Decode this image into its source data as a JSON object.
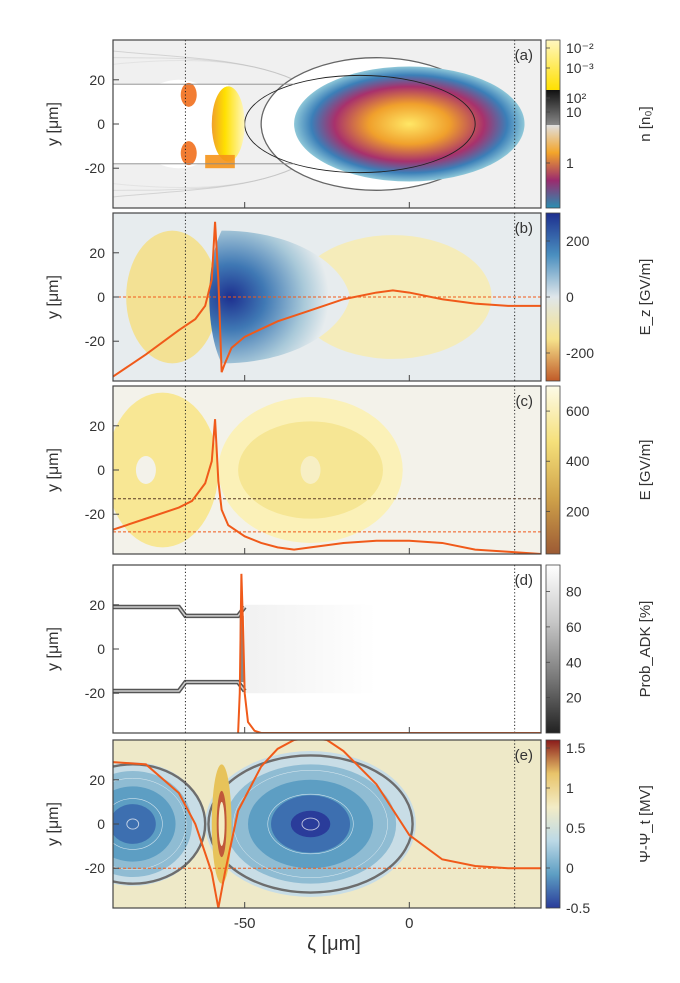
{
  "figure": {
    "xlabel": "ζ [μm]",
    "x_ticks": [
      "-50",
      "0"
    ]
  },
  "chart_data": [
    {
      "panel": "(a)",
      "type": "heatmap",
      "ylabel": "y [μm]",
      "xlim": [
        -90,
        40
      ],
      "ylim": [
        -38,
        38
      ],
      "y_ticks": [
        -20,
        0,
        20
      ],
      "colorbar": {
        "label": "n [n₀]",
        "ticks": [
          "10⁻²",
          "10⁻³",
          "10²",
          "10",
          "1"
        ],
        "colors": [
          "#fff7c0",
          "#ffe000",
          "#111111",
          "#888888",
          "#e0e0e0",
          "#f3a52a",
          "#9b2b6e",
          "#2a8fb2"
        ]
      },
      "contours": "outer bubble boundary + inner boundary ellipses; driver bunch centred at ζ≈0, |y|≲17 μm",
      "vlines_dotted": [
        -68,
        32
      ]
    },
    {
      "panel": "(b)",
      "type": "heatmap",
      "ylabel": "y [μm]",
      "xlim": [
        -90,
        40
      ],
      "ylim": [
        -38,
        38
      ],
      "y_ticks": [
        -20,
        0,
        20
      ],
      "colorbar": {
        "label": "E_z [GV/m]",
        "range": [
          -300,
          300
        ],
        "ticks": [
          "200",
          "0",
          "-200"
        ],
        "colors": [
          "#1d2f8f",
          "#4a8fbf",
          "#dfe6ea",
          "#f6e38c",
          "#c05a28"
        ]
      },
      "lineout": {
        "name": "on-axis E_z",
        "x": [
          -90,
          -80,
          -70,
          -65,
          -62,
          -60,
          -59,
          -58,
          -57,
          -56,
          -54,
          -50,
          -40,
          -30,
          -20,
          -10,
          -5,
          0,
          10,
          20,
          30,
          40
        ],
        "y": [
          -36,
          -26,
          -15,
          -10,
          -4,
          8,
          34,
          8,
          -34,
          -30,
          -23,
          -18,
          -11,
          -6,
          -1,
          2,
          3,
          2,
          -1,
          -3,
          -4,
          -4
        ]
      },
      "hline_dashed": 0,
      "vlines_dotted": [
        -68,
        32
      ]
    },
    {
      "panel": "(c)",
      "type": "heatmap",
      "ylabel": "y [μm]",
      "xlim": [
        -90,
        40
      ],
      "ylim": [
        -38,
        38
      ],
      "y_ticks": [
        -20,
        0,
        20
      ],
      "colorbar": {
        "label": "E [GV/m]",
        "range": [
          30,
          700
        ],
        "ticks": [
          "600",
          "400",
          "200"
        ],
        "colors": [
          "#fdfbe8",
          "#f5e07a",
          "#cfa24a",
          "#9c5a34"
        ]
      },
      "lineout": {
        "name": "on-axis E",
        "x": [
          -90,
          -80,
          -70,
          -66,
          -62,
          -60,
          -59,
          -58,
          -57,
          -55,
          -50,
          -45,
          -40,
          -35,
          -30,
          -20,
          -10,
          0,
          10,
          20,
          30,
          40
        ],
        "y": [
          -27,
          -22,
          -17,
          -14,
          -6,
          4,
          23,
          -5,
          -18,
          -25,
          -30,
          -33,
          -35,
          -36,
          -35,
          -33,
          -32,
          -32,
          -33,
          -36,
          -37,
          -38
        ]
      },
      "hlines_dashed": [
        -13,
        -28
      ],
      "vlines_dotted": [
        -68,
        32
      ]
    },
    {
      "panel": "(d)",
      "type": "heatmap",
      "ylabel": "y [μm]",
      "xlim": [
        -90,
        40
      ],
      "ylim": [
        -38,
        38
      ],
      "y_ticks": [
        -20,
        0,
        20
      ],
      "colorbar": {
        "label": "Prob_ADK [%]",
        "range": [
          0,
          95
        ],
        "ticks": [
          "80",
          "60",
          "40",
          "20"
        ],
        "colors": [
          "#ffffff",
          "#c8c8c8",
          "#7a7a7a",
          "#222222"
        ]
      },
      "lineout": {
        "name": "ionization probability",
        "x": [
          -52,
          -51.5,
          -51,
          -50.5,
          -50,
          -49,
          -47,
          -45,
          -40,
          40
        ],
        "y": [
          -38,
          -20,
          34,
          10,
          -20,
          -33,
          -37,
          -38,
          -38,
          -38
        ]
      },
      "vlines_dotted": [
        -68,
        32
      ]
    },
    {
      "panel": "(e)",
      "type": "heatmap",
      "ylabel": "y [μm]",
      "xlim": [
        -90,
        40
      ],
      "ylim": [
        -38,
        38
      ],
      "y_ticks": [
        -20,
        0,
        20
      ],
      "colorbar": {
        "label": "Ψ-Ψ_t [MV]",
        "range": [
          -0.5,
          1.6
        ],
        "ticks": [
          "1.5",
          "1",
          "0.5",
          "0",
          "-0.5"
        ],
        "colors": [
          "#8a1a1a",
          "#e8c46a",
          "#f3ecc6",
          "#bcd9e6",
          "#5d9ec3",
          "#2a3c9a"
        ]
      },
      "lineout": {
        "name": "on-axis Ψ-Ψ_t",
        "x": [
          -90,
          -80,
          -70,
          -65,
          -60,
          -58,
          -56,
          -52,
          -45,
          -40,
          -35,
          -30,
          -25,
          -20,
          -10,
          0,
          10,
          20,
          30,
          40
        ],
        "y": [
          28,
          27,
          14,
          0,
          -22,
          -38,
          -22,
          6,
          26,
          34,
          38,
          39,
          38,
          33,
          18,
          -5,
          -16,
          -19,
          -20,
          -20
        ]
      },
      "hline_dashed": -20,
      "vlines_dotted": [
        -68,
        32
      ]
    }
  ]
}
